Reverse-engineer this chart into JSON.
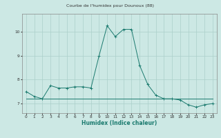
{
  "title": "Courbe de l'humidex pour Dounoux (88)",
  "xlabel": "Humidex (Indice chaleur)",
  "x": [
    0,
    1,
    2,
    3,
    4,
    5,
    6,
    7,
    8,
    9,
    10,
    11,
    12,
    13,
    14,
    15,
    16,
    17,
    18,
    19,
    20,
    21,
    22,
    23
  ],
  "y_main": [
    7.5,
    7.3,
    7.2,
    7.75,
    7.65,
    7.65,
    7.7,
    7.7,
    7.65,
    9.0,
    10.25,
    9.8,
    10.1,
    10.1,
    8.6,
    7.8,
    7.35,
    7.2,
    7.2,
    7.15,
    6.95,
    6.85,
    6.95,
    7.0
  ],
  "y_flat": [
    7.2,
    7.2,
    7.2,
    7.2,
    7.2,
    7.2,
    7.2,
    7.2,
    7.2,
    7.2,
    7.2,
    7.2,
    7.2,
    7.2,
    7.2,
    7.2,
    7.2,
    7.2,
    7.2,
    7.2,
    7.2,
    7.2,
    7.2,
    7.2
  ],
  "line_color": "#1a7a6e",
  "bg_color": "#cce8e4",
  "grid_color": "#aacfca",
  "ylim": [
    6.6,
    10.75
  ],
  "yticks": [
    7,
    8,
    9,
    10
  ],
  "xtick_labels": [
    "0",
    "1",
    "2",
    "3",
    "4",
    "5",
    "6",
    "7",
    "8",
    "9",
    "10",
    "11",
    "12",
    "13",
    "14",
    "15",
    "16",
    "17",
    "18",
    "19",
    "20",
    "21",
    "22",
    "23"
  ]
}
